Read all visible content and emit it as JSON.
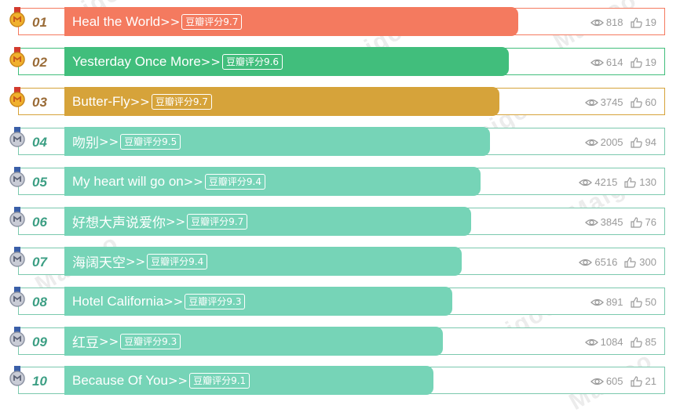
{
  "colors": {
    "rank1": "#f47a5f",
    "rank2": "#41be7c",
    "rank3": "#d6a33a",
    "rest": "#76d4b7",
    "border_rest": "#7bc9ae"
  },
  "watermark": "Maigoo",
  "items": [
    {
      "rank": "01",
      "title": "Heal the World",
      "arrow": ">>",
      "score": "豆瓣评分9.7",
      "views": "818",
      "likes": "19"
    },
    {
      "rank": "02",
      "title": "Yesterday Once More",
      "arrow": ">>",
      "score": "豆瓣评分9.6",
      "views": "614",
      "likes": "19"
    },
    {
      "rank": "03",
      "title": "Butter-Fly",
      "arrow": ">>",
      "score": "豆瓣评分9.7",
      "views": "3745",
      "likes": "60"
    },
    {
      "rank": "04",
      "title": "吻别",
      "arrow": ">>",
      "score": "豆瓣评分9.5",
      "views": "2005",
      "likes": "94"
    },
    {
      "rank": "05",
      "title": "My heart will go on",
      "arrow": ">>",
      "score": "豆瓣评分9.4",
      "views": "4215",
      "likes": "130"
    },
    {
      "rank": "06",
      "title": "好想大声说爱你",
      "arrow": ">>",
      "score": "豆瓣评分9.7",
      "views": "3845",
      "likes": "76"
    },
    {
      "rank": "07",
      "title": "海阔天空",
      "arrow": ">>",
      "score": "豆瓣评分9.4",
      "views": "6516",
      "likes": "300"
    },
    {
      "rank": "08",
      "title": "Hotel California",
      "arrow": ">>",
      "score": "豆瓣评分9.3",
      "views": "891",
      "likes": "50"
    },
    {
      "rank": "09",
      "title": "红豆",
      "arrow": ">>",
      "score": "豆瓣评分9.3",
      "views": "1084",
      "likes": "85"
    },
    {
      "rank": "10",
      "title": "Because Of You",
      "arrow": ">>",
      "score": "豆瓣评分9.1",
      "views": "605",
      "likes": "21"
    }
  ]
}
